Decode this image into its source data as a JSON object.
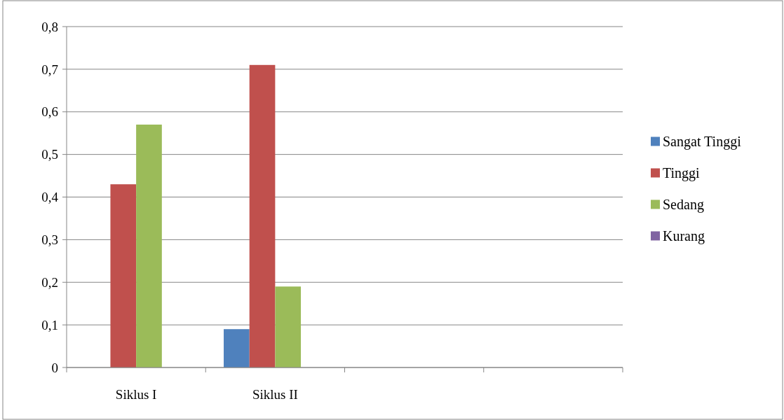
{
  "chart_data": {
    "type": "bar",
    "categories": [
      "Siklus I",
      "Siklus II",
      null,
      null
    ],
    "series": [
      {
        "name": "Sangat Tinggi",
        "color": "#4f81bd",
        "values": [
          0,
          0.09,
          null,
          null
        ]
      },
      {
        "name": "Tinggi",
        "color": "#c0504d",
        "values": [
          0.43,
          0.71,
          null,
          null
        ]
      },
      {
        "name": "Sedang",
        "color": "#9bbb59",
        "values": [
          0.57,
          0.19,
          null,
          null
        ]
      },
      {
        "name": "Kurang",
        "color": "#8064a2",
        "values": [
          0,
          0,
          null,
          null
        ]
      }
    ],
    "ylim": [
      0,
      0.8
    ],
    "yticks": [
      0,
      {
        "value": 0.1,
        "label": "0,1"
      },
      {
        "value": 0.2,
        "label": "0,2"
      },
      {
        "value": 0.3,
        "label": "0,3"
      },
      {
        "value": 0.4,
        "label": "0,4"
      },
      {
        "value": 0.5,
        "label": "0,5"
      },
      {
        "value": 0.6,
        "label": "0,6"
      },
      {
        "value": 0.7,
        "label": "0,7"
      },
      {
        "value": 0.8,
        "label": "0,8"
      }
    ],
    "grid": "y",
    "legend": "right"
  }
}
